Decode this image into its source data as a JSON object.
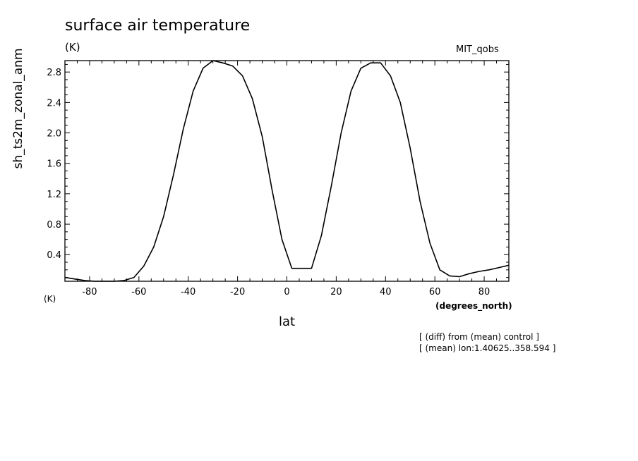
{
  "chart_data": {
    "type": "line",
    "title": "surface air temperature",
    "units_top": "(K)",
    "units_bottom": "(K)",
    "model_label": "MIT_qobs",
    "xlabel": "lat",
    "xunits": "(degrees_north)",
    "ylabel": "sh_ts2m_zonal_anm",
    "notes": [
      "[ (diff) from (mean) control ]",
      "[ (mean) lon:1.40625..358.594 ]"
    ],
    "xlim": [
      -90,
      90
    ],
    "ylim": [
      0.05,
      2.95
    ],
    "xticks": [
      -80,
      -60,
      -40,
      -20,
      0,
      20,
      40,
      60,
      80
    ],
    "xtick_labels": [
      "-80",
      "-60",
      "-40",
      "-20",
      "0",
      "20",
      "40",
      "60",
      "80"
    ],
    "yticks": [
      0.4,
      0.8,
      1.2,
      1.6,
      2.0,
      2.4,
      2.8
    ],
    "ytick_labels": [
      "0.4",
      "0.8",
      "1.2",
      "1.6",
      "2.0",
      "2.4",
      "2.8"
    ],
    "grid": false,
    "series": [
      {
        "x": [
          -90,
          -86,
          -82,
          -78,
          -74,
          -70,
          -66,
          -62,
          -58,
          -54,
          -50,
          -46,
          -42,
          -38,
          -34,
          -30,
          -26,
          -22,
          -18,
          -14,
          -10,
          -6,
          -2,
          2,
          6,
          10,
          14,
          18,
          22,
          26,
          30,
          34,
          38,
          42,
          46,
          50,
          54,
          58,
          62,
          66,
          70,
          74,
          78,
          82,
          86,
          90
        ],
        "y": [
          0.1,
          0.08,
          0.06,
          0.05,
          0.05,
          0.05,
          0.06,
          0.1,
          0.25,
          0.5,
          0.9,
          1.45,
          2.05,
          2.55,
          2.85,
          2.95,
          2.92,
          2.88,
          2.75,
          2.45,
          1.95,
          1.25,
          0.6,
          0.22,
          0.22,
          0.22,
          0.65,
          1.3,
          2.0,
          2.55,
          2.85,
          2.92,
          2.92,
          2.75,
          2.4,
          1.8,
          1.1,
          0.55,
          0.2,
          0.12,
          0.11,
          0.15,
          0.18,
          0.2,
          0.23,
          0.26
        ],
        "color": "#000000"
      }
    ]
  }
}
